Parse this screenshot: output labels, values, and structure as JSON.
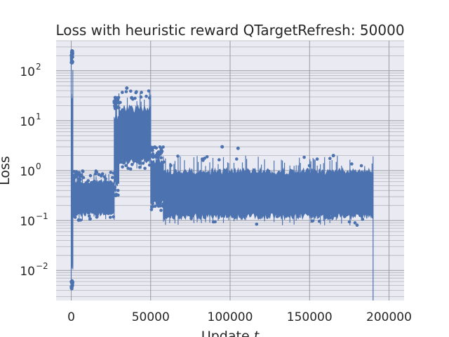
{
  "chart_data": {
    "type": "line",
    "title": "Loss with heuristic reward QTargetRefresh: 50000",
    "xlabel": "Update t",
    "ylabel": "Loss",
    "yscale": "log",
    "xlim": [
      -9500,
      209500
    ],
    "ylim": [
      0.0025,
      400
    ],
    "x_ticks": [
      0,
      50000,
      100000,
      150000,
      200000
    ],
    "x_tick_labels": [
      "0",
      "50000",
      "100000",
      "150000",
      "200000"
    ],
    "y_ticks": [
      0.01,
      0.1,
      1,
      10,
      100
    ],
    "y_tick_labels": [
      {
        "base": "10",
        "exp": "−2"
      },
      {
        "base": "10",
        "exp": "−1"
      },
      {
        "base": "10",
        "exp": "0"
      },
      {
        "base": "10",
        "exp": "1"
      },
      {
        "base": "10",
        "exp": "2"
      }
    ],
    "grid": true,
    "series_color": "#4c72b0",
    "background_color": "#eaeaf2",
    "segments": [
      {
        "x_start": 0,
        "x_end": 1000,
        "low": 0.004,
        "high": 250
      },
      {
        "x_start": 1000,
        "x_end": 5000,
        "low": 0.1,
        "high": 1.0
      },
      {
        "x_start": 5000,
        "x_end": 27000,
        "low": 0.1,
        "high": 1.0
      },
      {
        "x_start": 27000,
        "x_end": 30000,
        "low": 0.3,
        "high": 30
      },
      {
        "x_start": 30000,
        "x_end": 50000,
        "low": 1.0,
        "high": 40
      },
      {
        "x_start": 50000,
        "x_end": 58000,
        "low": 0.15,
        "high": 3.0
      },
      {
        "x_start": 58000,
        "x_end": 190000,
        "low": 0.08,
        "high": 2.0
      }
    ],
    "peaks": [
      {
        "x": 500,
        "y": 250
      },
      {
        "x": 35000,
        "y": 45
      },
      {
        "x": 95000,
        "y": 3.0
      },
      {
        "x": 105000,
        "y": 2.8
      },
      {
        "x": 25000,
        "y": 0.2
      },
      {
        "x": 165000,
        "y": 2.0
      }
    ],
    "end_drop": {
      "x": 190000,
      "y": 0.0025
    }
  }
}
